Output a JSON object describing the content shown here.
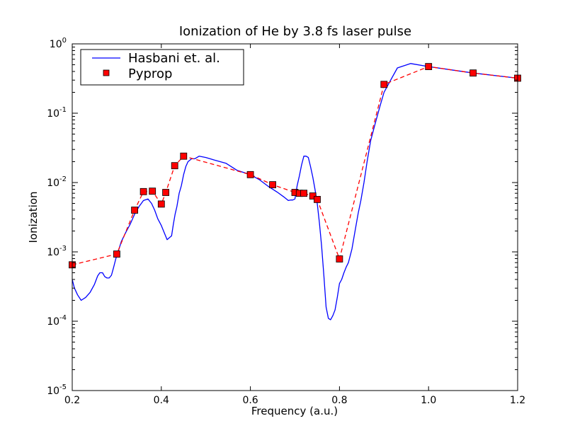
{
  "chart_data": {
    "type": "line",
    "title": "Ionization of He by 3.8 fs laser pulse",
    "xlabel": "Frequency (a.u.)",
    "ylabel": "Ionization",
    "xlim": [
      0.2,
      1.2
    ],
    "ylim": [
      1e-05,
      1
    ],
    "yscale": "log",
    "grid": false,
    "legend_position": "top-left",
    "x_ticks": [
      "0.2",
      "0.4",
      "0.6",
      "0.8",
      "1.0",
      "1.2"
    ],
    "y_ticks": [
      {
        "base": "10",
        "exp": "0"
      },
      {
        "base": "10",
        "exp": "-1"
      },
      {
        "base": "10",
        "exp": "-2"
      },
      {
        "base": "10",
        "exp": "-3"
      },
      {
        "base": "10",
        "exp": "-4"
      },
      {
        "base": "10",
        "exp": "-5"
      }
    ],
    "series": [
      {
        "name": "Hasbani et. al.",
        "style": "solid-line",
        "color": "#0000ff",
        "x": [
          0.2,
          0.205,
          0.212,
          0.22,
          0.23,
          0.24,
          0.25,
          0.257,
          0.262,
          0.268,
          0.273,
          0.278,
          0.283,
          0.288,
          0.293,
          0.298,
          0.303,
          0.31,
          0.32,
          0.33,
          0.34,
          0.35,
          0.36,
          0.37,
          0.378,
          0.385,
          0.392,
          0.4,
          0.408,
          0.413,
          0.418,
          0.423,
          0.427,
          0.431,
          0.435,
          0.44,
          0.445,
          0.45,
          0.455,
          0.46,
          0.468,
          0.475,
          0.485,
          0.5,
          0.52,
          0.545,
          0.57,
          0.6,
          0.62,
          0.64,
          0.66,
          0.675,
          0.685,
          0.69,
          0.695,
          0.7,
          0.705,
          0.71,
          0.715,
          0.72,
          0.725,
          0.73,
          0.735,
          0.74,
          0.745,
          0.75,
          0.755,
          0.76,
          0.765,
          0.77,
          0.775,
          0.78,
          0.785,
          0.79,
          0.795,
          0.8,
          0.805,
          0.81,
          0.815,
          0.82,
          0.828,
          0.835,
          0.842,
          0.848,
          0.855,
          0.862,
          0.87,
          0.88,
          0.89,
          0.9,
          0.915,
          0.93,
          0.96,
          1.0,
          1.1,
          1.2
        ],
        "y": [
          0.0004,
          0.0003,
          0.00024,
          0.0002,
          0.00022,
          0.00026,
          0.00034,
          0.00045,
          0.0005,
          0.0005,
          0.00044,
          0.00042,
          0.00042,
          0.00046,
          0.0006,
          0.0008,
          0.001,
          0.0014,
          0.0019,
          0.0025,
          0.0035,
          0.0045,
          0.0055,
          0.0058,
          0.005,
          0.004,
          0.003,
          0.0024,
          0.0018,
          0.0015,
          0.0016,
          0.0017,
          0.0025,
          0.0035,
          0.0045,
          0.007,
          0.009,
          0.013,
          0.017,
          0.02,
          0.022,
          0.022,
          0.024,
          0.023,
          0.021,
          0.019,
          0.015,
          0.013,
          0.011,
          0.0088,
          0.0073,
          0.0062,
          0.0055,
          0.0056,
          0.0056,
          0.0058,
          0.009,
          0.0125,
          0.018,
          0.024,
          0.024,
          0.023,
          0.017,
          0.012,
          0.008,
          0.005,
          0.0026,
          0.0012,
          0.00045,
          0.00016,
          0.00011,
          0.000105,
          0.00012,
          0.000145,
          0.00022,
          0.00035,
          0.0004,
          0.0005,
          0.0006,
          0.0007,
          0.0011,
          0.002,
          0.0036,
          0.0055,
          0.01,
          0.02,
          0.04,
          0.07,
          0.12,
          0.2,
          0.3,
          0.45,
          0.52,
          0.47,
          0.38,
          0.32
        ]
      },
      {
        "name": "Pyprop",
        "style": "dashed-line-with-squares",
        "color": "#ff0000",
        "x": [
          0.2,
          0.3,
          0.34,
          0.36,
          0.38,
          0.4,
          0.41,
          0.43,
          0.45,
          0.6,
          0.65,
          0.7,
          0.71,
          0.72,
          0.74,
          0.75,
          0.8,
          0.9,
          1.0,
          1.1,
          1.2
        ],
        "y": [
          0.00065,
          0.00093,
          0.004,
          0.0074,
          0.0075,
          0.0049,
          0.0072,
          0.0175,
          0.024,
          0.013,
          0.0093,
          0.0072,
          0.007,
          0.007,
          0.0064,
          0.0057,
          0.00079,
          0.26,
          0.47,
          0.38,
          0.32
        ]
      }
    ]
  }
}
